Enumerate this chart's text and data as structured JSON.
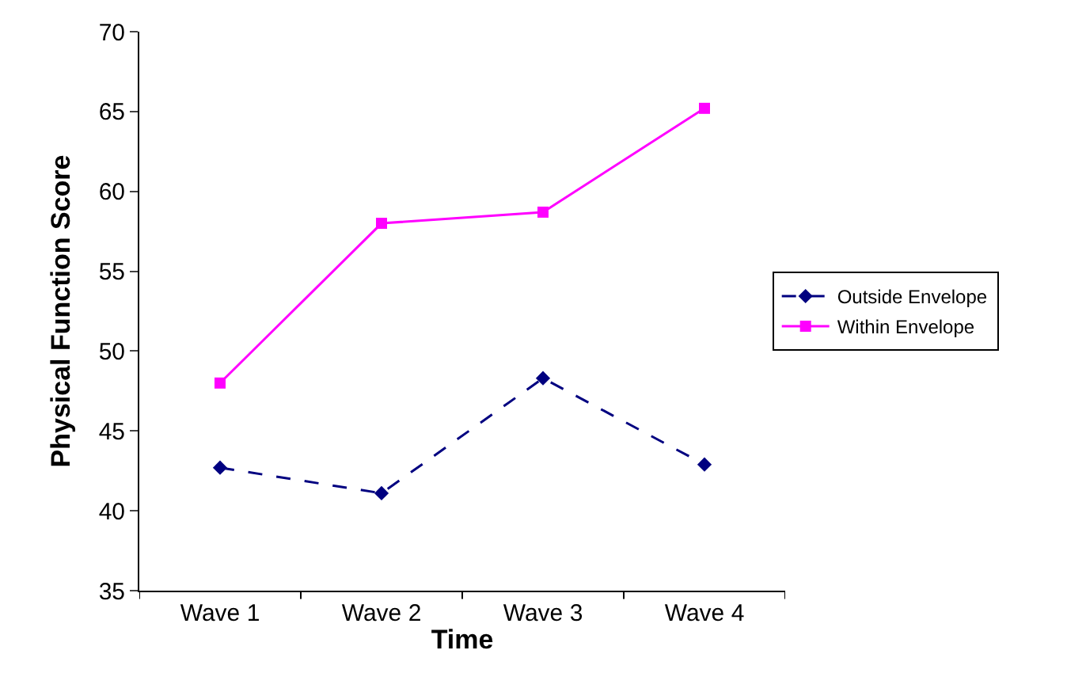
{
  "chart_data": {
    "type": "line",
    "xlabel": "Time",
    "ylabel": "Physical Function Score",
    "categories": [
      "Wave 1",
      "Wave 2",
      "Wave 3",
      "Wave 4"
    ],
    "series": [
      {
        "name": "Outside Envelope",
        "color": "#000080",
        "values": [
          42.7,
          41.1,
          48.3,
          42.9
        ],
        "line_style": "dashed",
        "marker": "diamond"
      },
      {
        "name": "Within Envelope",
        "color": "#ff00ff",
        "values": [
          48,
          58,
          58.7,
          65.2
        ],
        "line_style": "solid",
        "marker": "square"
      }
    ],
    "ylim": [
      35,
      70
    ],
    "yticks": [
      35,
      40,
      45,
      50,
      55,
      60,
      65,
      70
    ],
    "grid": false,
    "legend": "right"
  }
}
